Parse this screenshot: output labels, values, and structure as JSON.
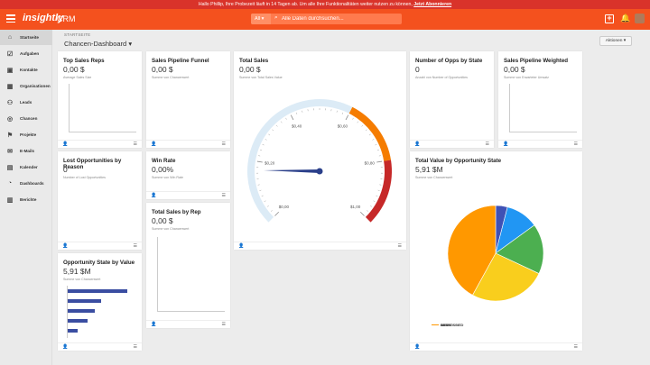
{
  "banner": {
    "text": "Hallo Phillip, Ihre Probezeit läuft in 14 Tagen ab. Um alle Ihre Funktionalitäten weiter nutzen zu können,",
    "link": "Jetzt Abonnieren"
  },
  "topnav": {
    "logo": "insightly",
    "app": "CRM",
    "search_scope": "All",
    "search_placeholder": "Alle Daten durchsuchen..."
  },
  "sidebar": {
    "items": [
      {
        "label": "Startseite",
        "icon": "home-icon"
      },
      {
        "label": "Aufgaben",
        "icon": "checkbox-icon"
      },
      {
        "label": "Kontakte",
        "icon": "contacts-icon"
      },
      {
        "label": "Organisationen",
        "icon": "building-icon"
      },
      {
        "label": "Leads",
        "icon": "leads-icon"
      },
      {
        "label": "Chancen",
        "icon": "target-icon"
      },
      {
        "label": "Projekte",
        "icon": "flag-icon"
      },
      {
        "label": "E-Mails",
        "icon": "email-icon"
      },
      {
        "label": "Kalender",
        "icon": "calendar-icon"
      },
      {
        "label": "Dashboards",
        "icon": "dashboard-icon"
      },
      {
        "label": "Berichte",
        "icon": "reports-icon"
      }
    ]
  },
  "header": {
    "breadcrumb": "STARTSEITE",
    "title": "Chancen-Dashboard",
    "actions": "Aktionen"
  },
  "cards": {
    "top_sales_reps": {
      "title": "Top Sales Reps",
      "value": "0,00 $",
      "sub": "Average Sales Size"
    },
    "pipeline_funnel": {
      "title": "Sales Pipeline Funnel",
      "value": "0,00 $",
      "sub": "Summe von Chancenwert"
    },
    "total_sales": {
      "title": "Total Sales",
      "value": "0,00 $",
      "sub": "Summe von Total Sales Value",
      "gauge_value": 0.0,
      "gauge_labels": [
        "$0,00",
        "$0,20",
        "$0,40",
        "$0,60",
        "$0,80",
        "$1,00"
      ]
    },
    "opps_by_state": {
      "title": "Number of Opps by State",
      "value": "0",
      "sub": "Anzahl von Number of Opportunities"
    },
    "pipeline_weighted": {
      "title": "Sales Pipeline Weighted",
      "value": "0,00 $",
      "sub": "Summe von Erwarteter Umsatz"
    },
    "lost_by_reason": {
      "title": "Lost Opportunities by Reason",
      "value": "0",
      "sub": "Number of Lost Opportunities"
    },
    "win_rate": {
      "title": "Win Rate",
      "value": "0,00%",
      "sub": "Summe von Win Rate"
    },
    "total_sales_rep": {
      "title": "Total Sales by Rep",
      "value": "0,00 $",
      "sub": "Summe von Chancenwert"
    },
    "state_by_value": {
      "title": "Opportunity State by Value",
      "value": "5,91 $M",
      "sub": "Summe von Chancenwert"
    },
    "value_by_state": {
      "title": "Total Value by Opportunity State",
      "value": "5,91 $M",
      "sub": "Summe von Chancenwert"
    }
  },
  "chart_data": [
    {
      "type": "bar",
      "orientation": "horizontal",
      "title": "Opportunity State by Value",
      "values": [
        1.0,
        0.56,
        0.46,
        0.34,
        0.17
      ],
      "color": "#3a4da1"
    },
    {
      "type": "pie",
      "title": "Total Value by Opportunity State",
      "categories": [
        "ABANDONED",
        "LOST",
        "SUSPENDED",
        "OPEN",
        "WON"
      ],
      "values": [
        4,
        11,
        17,
        26,
        42
      ],
      "colors": [
        "#3f51b5",
        "#2196f3",
        "#4caf50",
        "#f9ce1d",
        "#ff9800"
      ]
    }
  ]
}
